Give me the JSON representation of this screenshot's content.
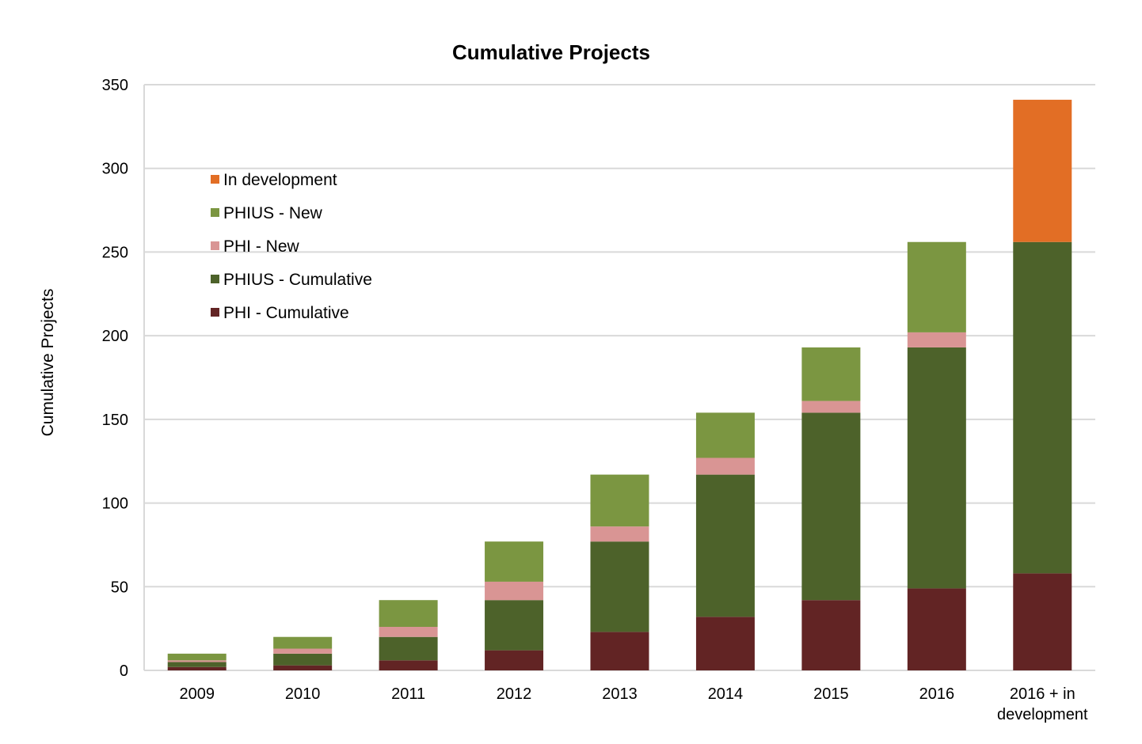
{
  "chart_data": {
    "type": "bar",
    "stacked": true,
    "title": "Cumulative Projects",
    "xlabel": "",
    "ylabel": "Cumulative Projects",
    "ylim": [
      0,
      350
    ],
    "yticks": [
      0,
      50,
      100,
      150,
      200,
      250,
      300,
      350
    ],
    "grid": true,
    "legend_position": "top-left",
    "categories": [
      "2009",
      "2010",
      "2011",
      "2012",
      "2013",
      "2014",
      "2015",
      "2016",
      "2016 + in development"
    ],
    "series": [
      {
        "name": "PHI - Cumulative",
        "color": "#622424",
        "values": [
          2,
          3,
          6,
          12,
          23,
          32,
          42,
          49,
          58
        ]
      },
      {
        "name": "PHIUS - Cumulative",
        "color": "#4d622a",
        "values": [
          3,
          7,
          14,
          30,
          54,
          85,
          112,
          144,
          198
        ]
      },
      {
        "name": "PHI - New",
        "color": "#d99594",
        "values": [
          1,
          3,
          6,
          11,
          9,
          10,
          7,
          9,
          0
        ]
      },
      {
        "name": "PHIUS - New",
        "color": "#7b9641",
        "values": [
          4,
          7,
          16,
          24,
          31,
          27,
          32,
          54,
          0
        ]
      },
      {
        "name": "In development",
        "color": "#e26e25",
        "values": [
          0,
          0,
          0,
          0,
          0,
          0,
          0,
          0,
          85
        ]
      }
    ],
    "legend_order": [
      "In development",
      "PHIUS - New",
      "PHI - New",
      "PHIUS - Cumulative",
      "PHI - Cumulative"
    ]
  }
}
